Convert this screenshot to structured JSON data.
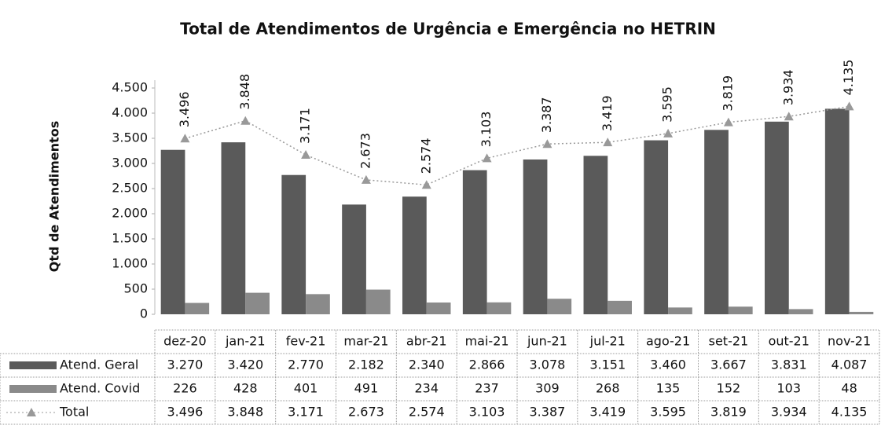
{
  "chart_data": {
    "type": "bar",
    "title": "Total de Atendimentos de Urgência e Emergência no HETRIN",
    "y_label": "Qtd de Atendimentos",
    "categories": [
      "dez-20",
      "jan-21",
      "fev-21",
      "mar-21",
      "abr-21",
      "mai-21",
      "jun-21",
      "jul-21",
      "ago-21",
      "set-21",
      "out-21",
      "nov-21"
    ],
    "series": [
      {
        "name": "Atend. Geral",
        "type": "bar",
        "color": "#5a5a5a",
        "values": [
          3270,
          3420,
          2770,
          2182,
          2340,
          2866,
          3078,
          3151,
          3460,
          3667,
          3831,
          4087
        ],
        "value_labels": [
          "3.270",
          "3.420",
          "2.770",
          "2.182",
          "2.340",
          "2.866",
          "3.078",
          "3.151",
          "3.460",
          "3.667",
          "3.831",
          "4.087"
        ]
      },
      {
        "name": "Atend. Covid",
        "type": "bar",
        "color": "#8a8a8a",
        "values": [
          226,
          428,
          401,
          491,
          234,
          237,
          309,
          268,
          135,
          152,
          103,
          48
        ]
      },
      {
        "name": "Total",
        "type": "line",
        "color": "#999999",
        "values": [
          3496,
          3848,
          3171,
          2673,
          2574,
          3103,
          3387,
          3419,
          3595,
          3819,
          3934,
          4135
        ],
        "value_labels": [
          "3.496",
          "3.848",
          "3.171",
          "2.673",
          "2.574",
          "3.103",
          "3.387",
          "3.419",
          "3.595",
          "3.819",
          "3.934",
          "4.135"
        ]
      }
    ],
    "ylim": [
      0,
      4500
    ],
    "yticks": [
      0,
      500,
      {
        "value": 1000,
        "label": "1.000"
      },
      {
        "value": 1500,
        "label": "1.500"
      },
      {
        "value": 2000,
        "label": "2.000"
      },
      {
        "value": 2500,
        "label": "2.500"
      },
      {
        "value": 3000,
        "label": "3.000"
      },
      {
        "value": 3500,
        "label": "3.500"
      },
      {
        "value": 4000,
        "label": "4.000"
      },
      {
        "value": 4500,
        "label": "4.500"
      }
    ]
  }
}
